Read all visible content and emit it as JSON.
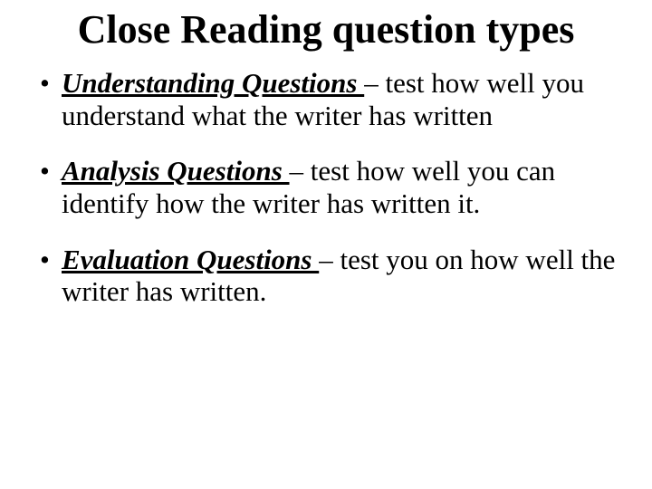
{
  "background_color": "#ffffff",
  "text_color": "#000000",
  "font_family": "Times New Roman",
  "title": {
    "text": "Close Reading question types",
    "fontsize": 44,
    "font_weight": "bold",
    "align": "center"
  },
  "bullets": [
    {
      "term": "Understanding Questions ",
      "desc": "– test how well you understand what the writer has written",
      "fontsize": 31
    },
    {
      "term": "Analysis Questions ",
      "desc": "– test how well you can identify how the writer has written it.",
      "fontsize": 31
    },
    {
      "term": "Evaluation Questions ",
      "desc": "– test you on how well the writer has written.",
      "fontsize": 31
    }
  ]
}
